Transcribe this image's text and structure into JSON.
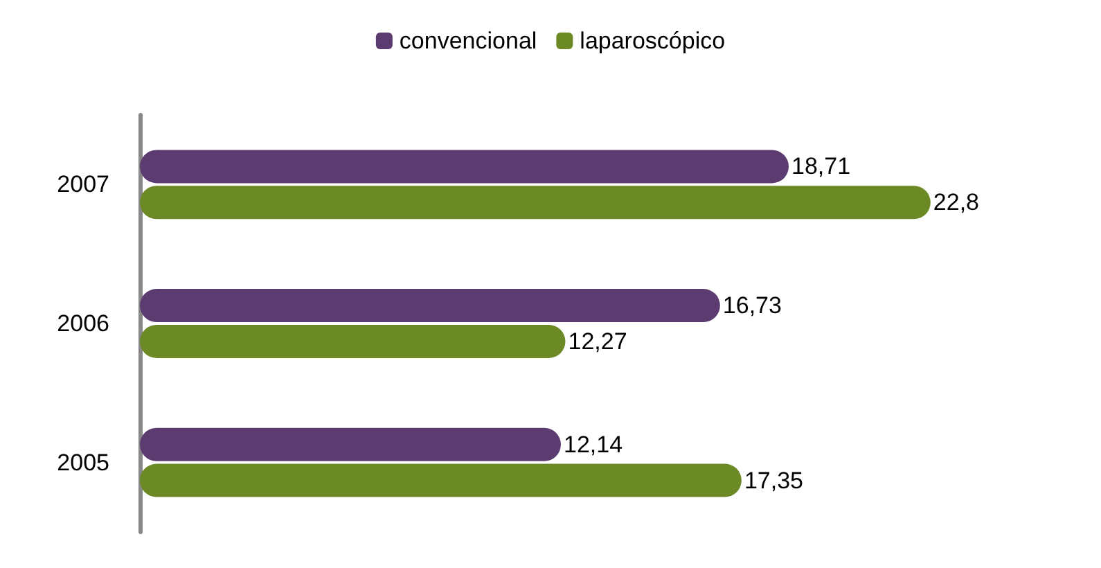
{
  "chart_data": {
    "type": "bar",
    "orientation": "horizontal",
    "categories": [
      "2007",
      "2006",
      "2005"
    ],
    "series": [
      {
        "name": "convencional",
        "color": "#5b3b70",
        "values": [
          18.71,
          16.73,
          12.14
        ],
        "value_labels": [
          "18,71",
          "16,73",
          "12,14"
        ]
      },
      {
        "name": "laparoscópico",
        "color": "#6b8a26",
        "values": [
          22.8,
          12.27,
          17.35
        ],
        "value_labels": [
          "22,8",
          "12,27",
          "17,35"
        ]
      }
    ],
    "legend": "top",
    "grid": false,
    "tick_labels": "y"
  }
}
